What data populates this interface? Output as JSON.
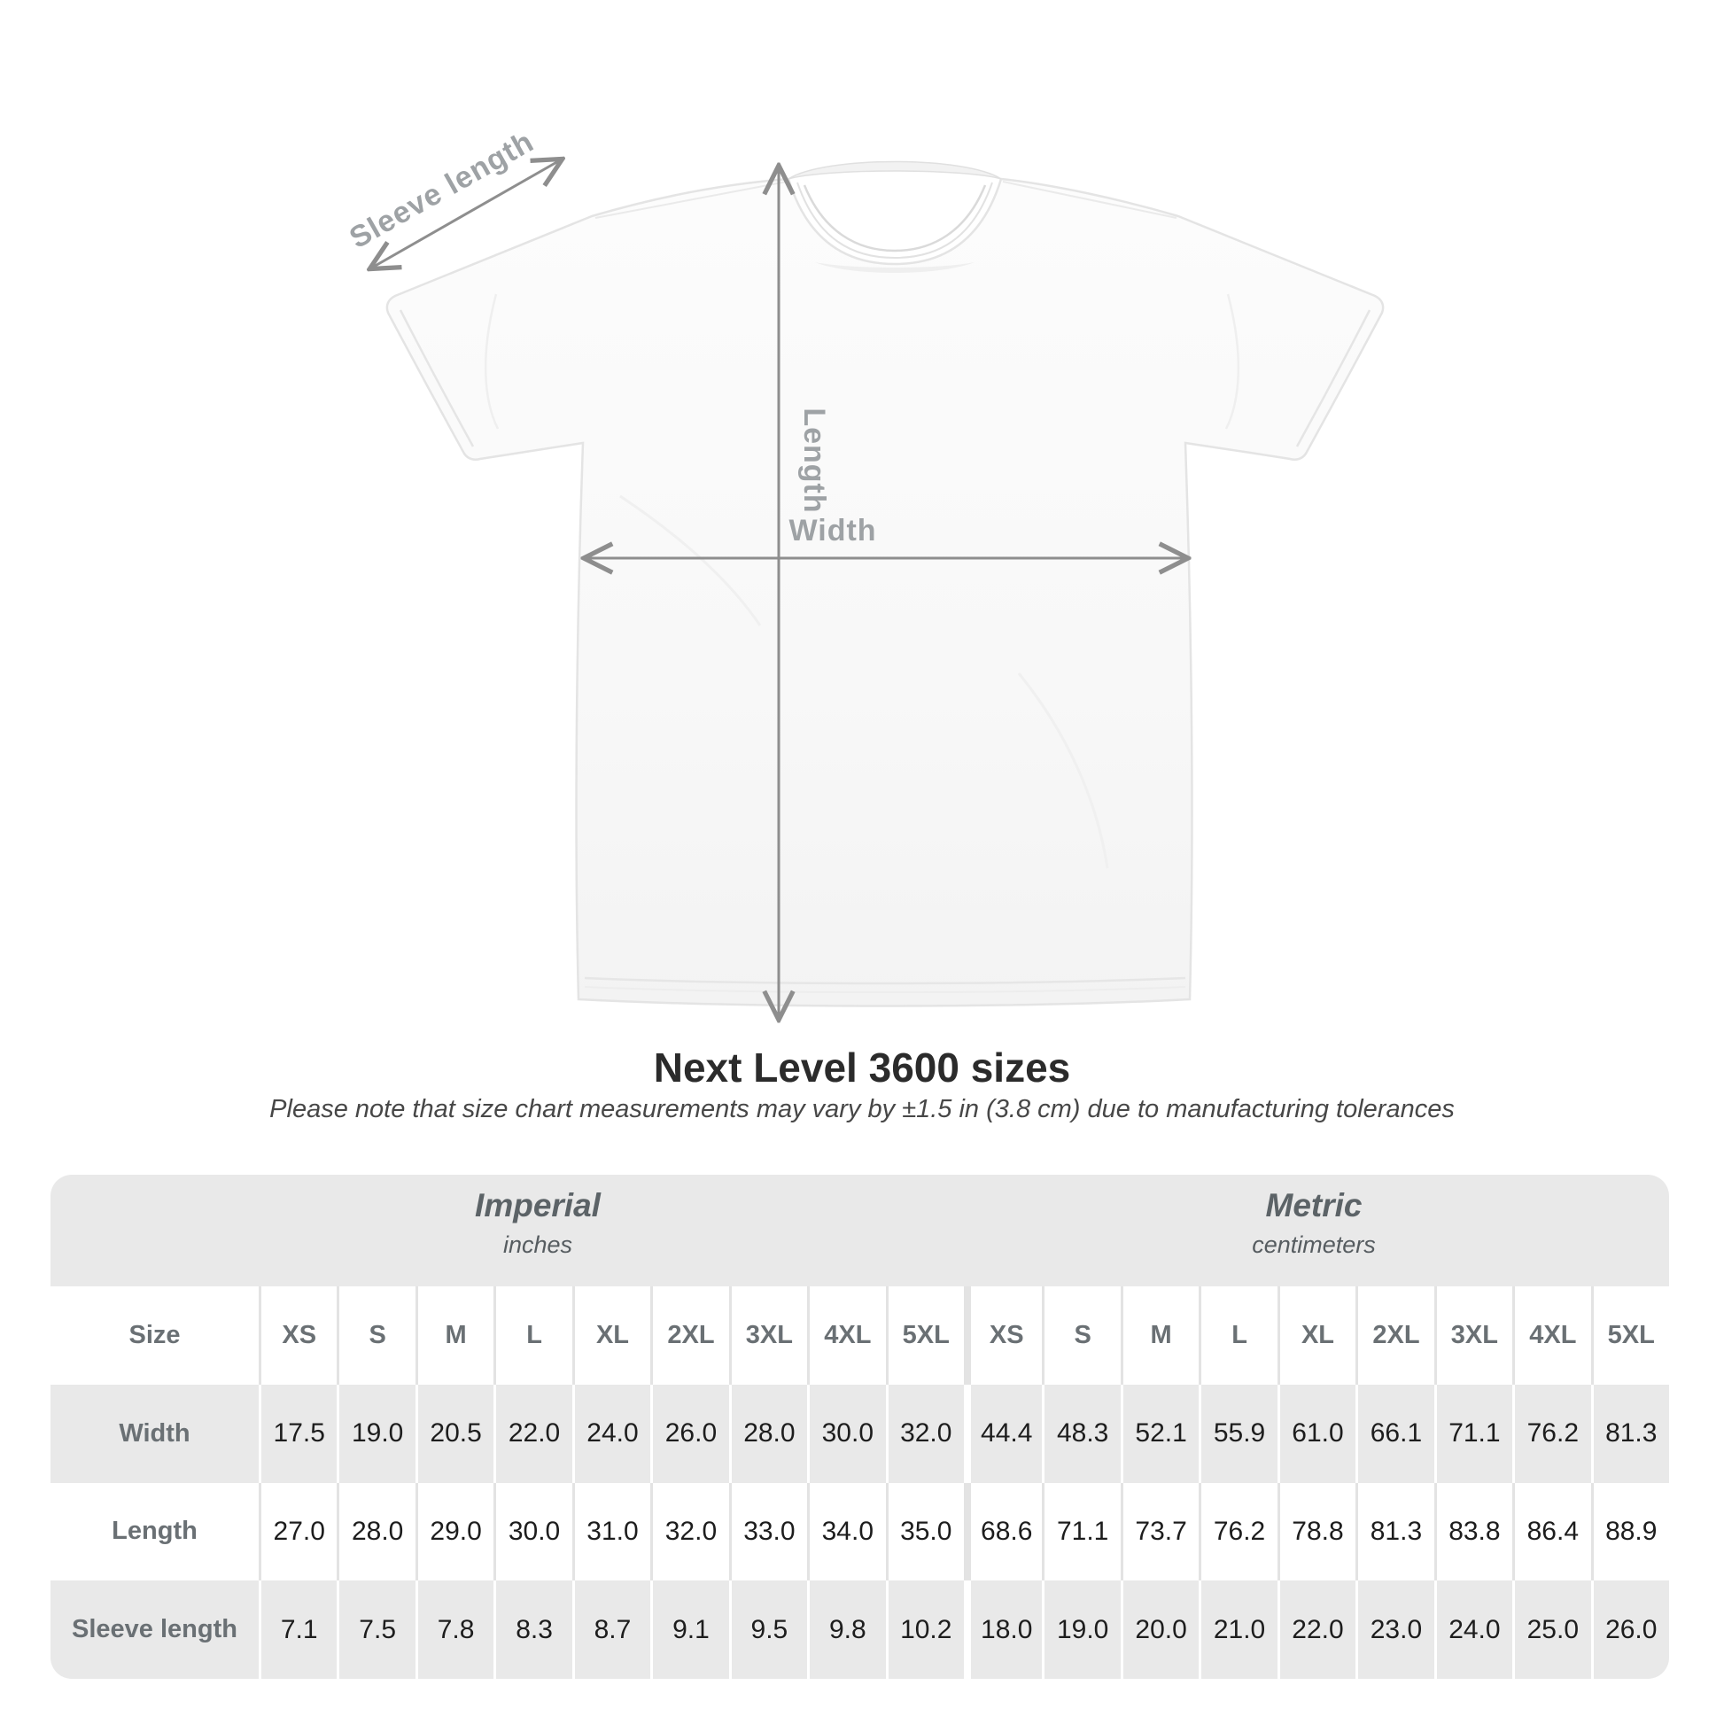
{
  "shirt_diagram": {
    "labels": {
      "sleeve_length": "Sleeve length",
      "length": "Length",
      "width": "Width"
    },
    "arrow_color": "#8e8e8e",
    "label_color": "#9ea2a5"
  },
  "title": "Next Level 3600 sizes",
  "note": "Please note that size chart measurements may vary by ±1.5 in (3.8 cm) due to manufacturing tolerances",
  "table": {
    "size_header": "Size",
    "sections": [
      {
        "name": "Imperial",
        "unit": "inches"
      },
      {
        "name": "Metric",
        "unit": "centimeters"
      }
    ],
    "sizes": [
      "XS",
      "S",
      "M",
      "L",
      "XL",
      "2XL",
      "3XL",
      "4XL",
      "5XL"
    ],
    "rows": [
      {
        "label": "Width",
        "imperial": [
          "17.5",
          "19.0",
          "20.5",
          "22.0",
          "24.0",
          "26.0",
          "28.0",
          "30.0",
          "32.0"
        ],
        "metric": [
          "44.4",
          "48.3",
          "52.1",
          "55.9",
          "61.0",
          "66.1",
          "71.1",
          "76.2",
          "81.3"
        ]
      },
      {
        "label": "Length",
        "imperial": [
          "27.0",
          "28.0",
          "29.0",
          "30.0",
          "31.0",
          "32.0",
          "33.0",
          "34.0",
          "35.0"
        ],
        "metric": [
          "68.6",
          "71.1",
          "73.7",
          "76.2",
          "78.8",
          "81.3",
          "83.8",
          "86.4",
          "88.9"
        ]
      },
      {
        "label": "Sleeve length",
        "imperial": [
          "7.1",
          "7.5",
          "7.8",
          "8.3",
          "8.7",
          "9.1",
          "9.5",
          "9.8",
          "10.2"
        ],
        "metric": [
          "18.0",
          "19.0",
          "20.0",
          "21.0",
          "22.0",
          "23.0",
          "24.0",
          "25.0",
          "26.0"
        ]
      }
    ]
  },
  "colors": {
    "table_band": "#e9e9e9",
    "table_stripe": "#e9e9e9",
    "value_text": "#1d1d1d",
    "header_text": "#6a7074",
    "title_text": "#2b2b2b"
  }
}
